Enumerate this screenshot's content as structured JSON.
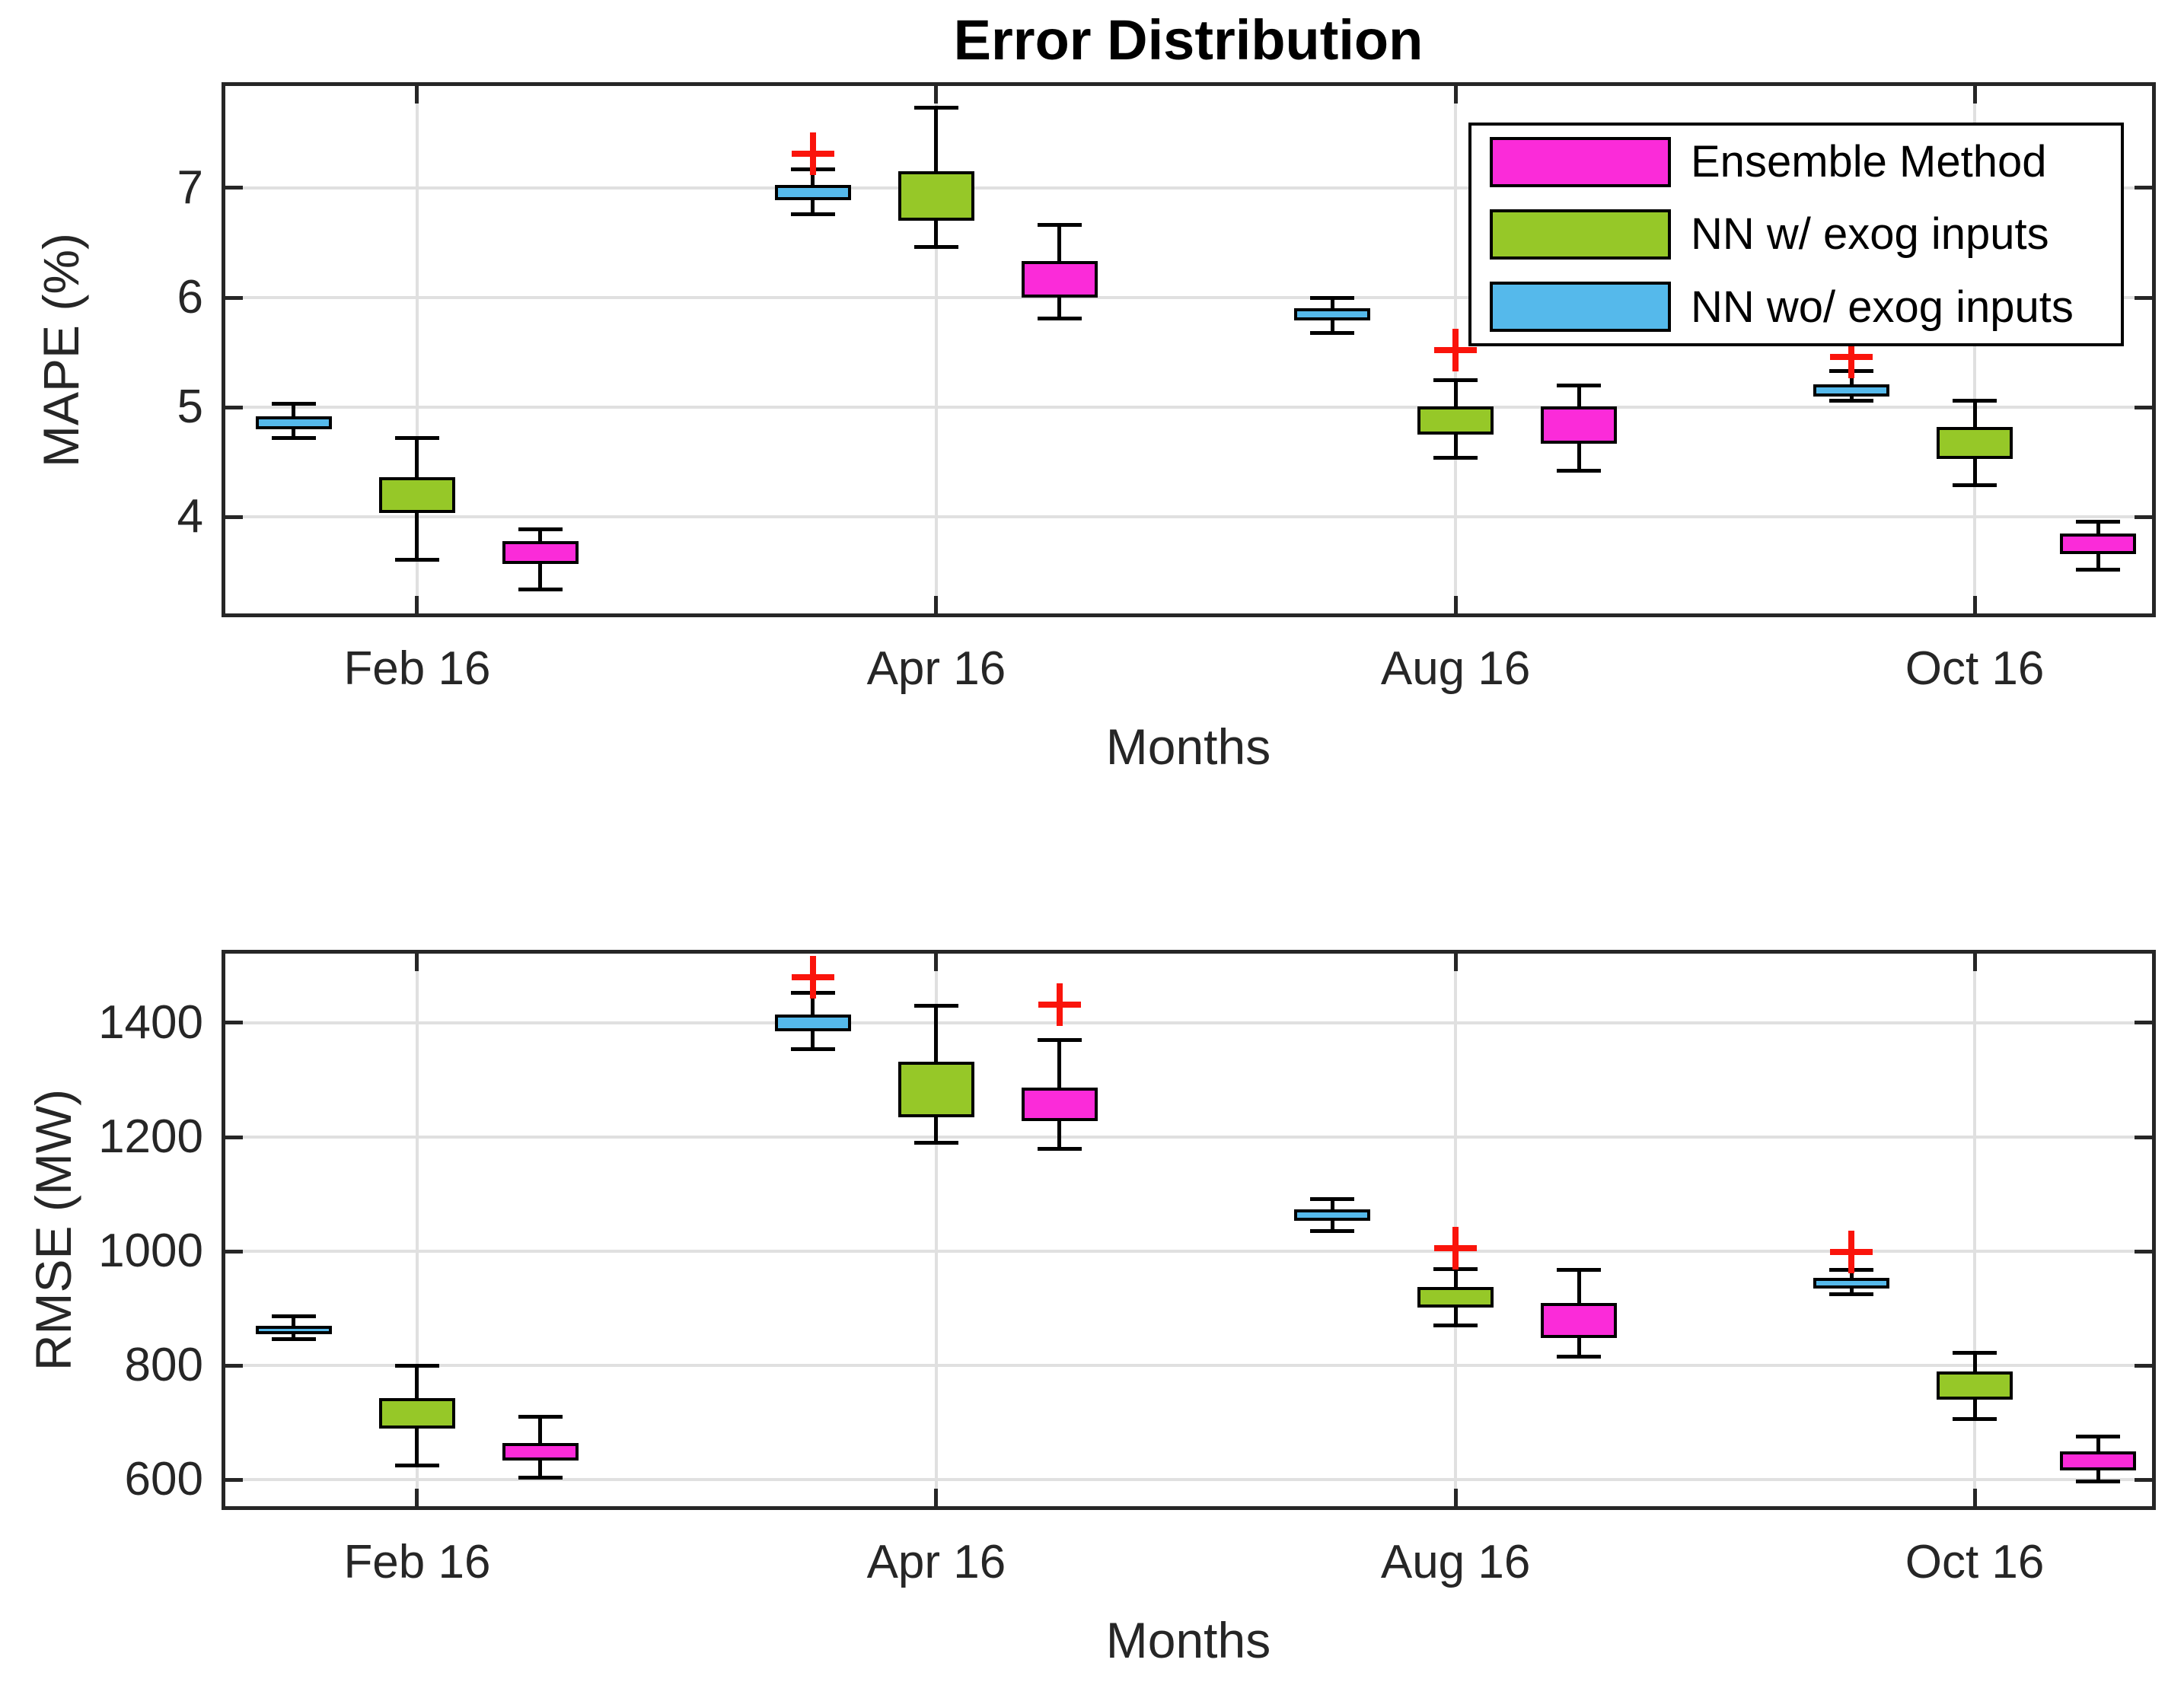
{
  "figure": {
    "title": "Error Distribution",
    "background": "#ffffff"
  },
  "colors": {
    "ensemble": "#fb2bd9",
    "nn_with_exog": "#96c828",
    "nn_without_exog": "#55b9eb",
    "outlier": "#fa140b",
    "grid": "#e0e0e0",
    "axis": "#262626"
  },
  "legend": {
    "position": "top-right",
    "items": [
      {
        "label": "Ensemble Method",
        "color": "#fb2bd9"
      },
      {
        "label": "NN w/ exog inputs",
        "color": "#96c828"
      },
      {
        "label": "NN wo/ exog inputs",
        "color": "#55b9eb"
      }
    ]
  },
  "chart_data": [
    {
      "type": "boxplot",
      "title": "Error Distribution",
      "xlabel": "Months",
      "ylabel": "MAPE (%)",
      "categories": [
        "Feb 16",
        "Apr 16",
        "Aug 16",
        "Oct 16"
      ],
      "yticks": [
        4,
        5,
        6,
        7
      ],
      "ytick_labels": [
        "4",
        "5",
        "6",
        "7"
      ],
      "ylim": [
        3.1,
        7.95
      ],
      "grid": true,
      "median_line_visible": false,
      "legend_position": "top-right",
      "series": [
        {
          "name": "NN wo/ exog inputs",
          "color": "#55b9eb",
          "boxes": [
            {
              "whisker_low": 4.72,
              "q1": 4.8,
              "q3": 4.92,
              "whisker_high": 5.03,
              "outliers": []
            },
            {
              "whisker_low": 6.76,
              "q1": 6.89,
              "q3": 7.03,
              "whisker_high": 7.17,
              "outliers": [
                7.31
              ]
            },
            {
              "whisker_low": 5.68,
              "q1": 5.79,
              "q3": 5.9,
              "whisker_high": 6.0,
              "outliers": []
            },
            {
              "whisker_low": 5.06,
              "q1": 5.1,
              "q3": 5.21,
              "whisker_high": 5.33,
              "outliers": [
                5.46
              ]
            }
          ]
        },
        {
          "name": "NN w/ exog inputs",
          "color": "#96c828",
          "boxes": [
            {
              "whisker_low": 3.61,
              "q1": 4.04,
              "q3": 4.36,
              "whisker_high": 4.72,
              "outliers": []
            },
            {
              "whisker_low": 6.46,
              "q1": 6.7,
              "q3": 7.15,
              "whisker_high": 7.73,
              "outliers": []
            },
            {
              "whisker_low": 4.54,
              "q1": 4.75,
              "q3": 5.01,
              "whisker_high": 5.25,
              "outliers": [
                5.52
              ]
            },
            {
              "whisker_low": 4.29,
              "q1": 4.53,
              "q3": 4.82,
              "whisker_high": 5.06,
              "outliers": []
            }
          ]
        },
        {
          "name": "Ensemble Method",
          "color": "#fb2bd9",
          "boxes": [
            {
              "whisker_low": 3.34,
              "q1": 3.57,
              "q3": 3.78,
              "whisker_high": 3.89,
              "outliers": []
            },
            {
              "whisker_low": 5.81,
              "q1": 6.0,
              "q3": 6.33,
              "whisker_high": 6.66,
              "outliers": []
            },
            {
              "whisker_low": 4.42,
              "q1": 4.67,
              "q3": 5.01,
              "whisker_high": 5.2,
              "outliers": []
            },
            {
              "whisker_low": 3.52,
              "q1": 3.66,
              "q3": 3.85,
              "whisker_high": 3.96,
              "outliers": []
            }
          ]
        }
      ]
    },
    {
      "type": "boxplot",
      "title": "",
      "xlabel": "Months",
      "ylabel": "RMSE (MW)",
      "categories": [
        "Feb 16",
        "Apr 16",
        "Aug 16",
        "Oct 16"
      ],
      "yticks": [
        600,
        800,
        1000,
        1200,
        1400
      ],
      "ytick_labels": [
        "600",
        "800",
        "1000",
        "1200",
        "1400"
      ],
      "ylim": [
        550,
        1525
      ],
      "grid": true,
      "median_line_visible": false,
      "series": [
        {
          "name": "NN wo/ exog inputs",
          "color": "#55b9eb",
          "boxes": [
            {
              "whisker_low": 846,
              "q1": 855,
              "q3": 870,
              "whisker_high": 886,
              "outliers": []
            },
            {
              "whisker_low": 1354,
              "q1": 1385,
              "q3": 1414,
              "whisker_high": 1452,
              "outliers": [
                1480
              ]
            },
            {
              "whisker_low": 1036,
              "q1": 1054,
              "q3": 1073,
              "whisker_high": 1091,
              "outliers": []
            },
            {
              "whisker_low": 925,
              "q1": 935,
              "q3": 953,
              "whisker_high": 968,
              "outliers": [
                999
              ]
            }
          ]
        },
        {
          "name": "NN w/ exog inputs",
          "color": "#96c828",
          "boxes": [
            {
              "whisker_low": 625,
              "q1": 690,
              "q3": 743,
              "whisker_high": 800,
              "outliers": []
            },
            {
              "whisker_low": 1190,
              "q1": 1235,
              "q3": 1332,
              "whisker_high": 1430,
              "outliers": []
            },
            {
              "whisker_low": 870,
              "q1": 901,
              "q3": 938,
              "whisker_high": 969,
              "outliers": [
                1006
              ]
            },
            {
              "whisker_low": 707,
              "q1": 740,
              "q3": 790,
              "whisker_high": 823,
              "outliers": []
            }
          ]
        },
        {
          "name": "Ensemble Method",
          "color": "#fb2bd9",
          "boxes": [
            {
              "whisker_low": 604,
              "q1": 634,
              "q3": 664,
              "whisker_high": 710,
              "outliers": []
            },
            {
              "whisker_low": 1180,
              "q1": 1228,
              "q3": 1287,
              "whisker_high": 1370,
              "outliers": [
                1432
              ]
            },
            {
              "whisker_low": 816,
              "q1": 848,
              "q3": 910,
              "whisker_high": 968,
              "outliers": []
            },
            {
              "whisker_low": 597,
              "q1": 617,
              "q3": 650,
              "whisker_high": 676,
              "outliers": []
            }
          ]
        }
      ]
    }
  ]
}
